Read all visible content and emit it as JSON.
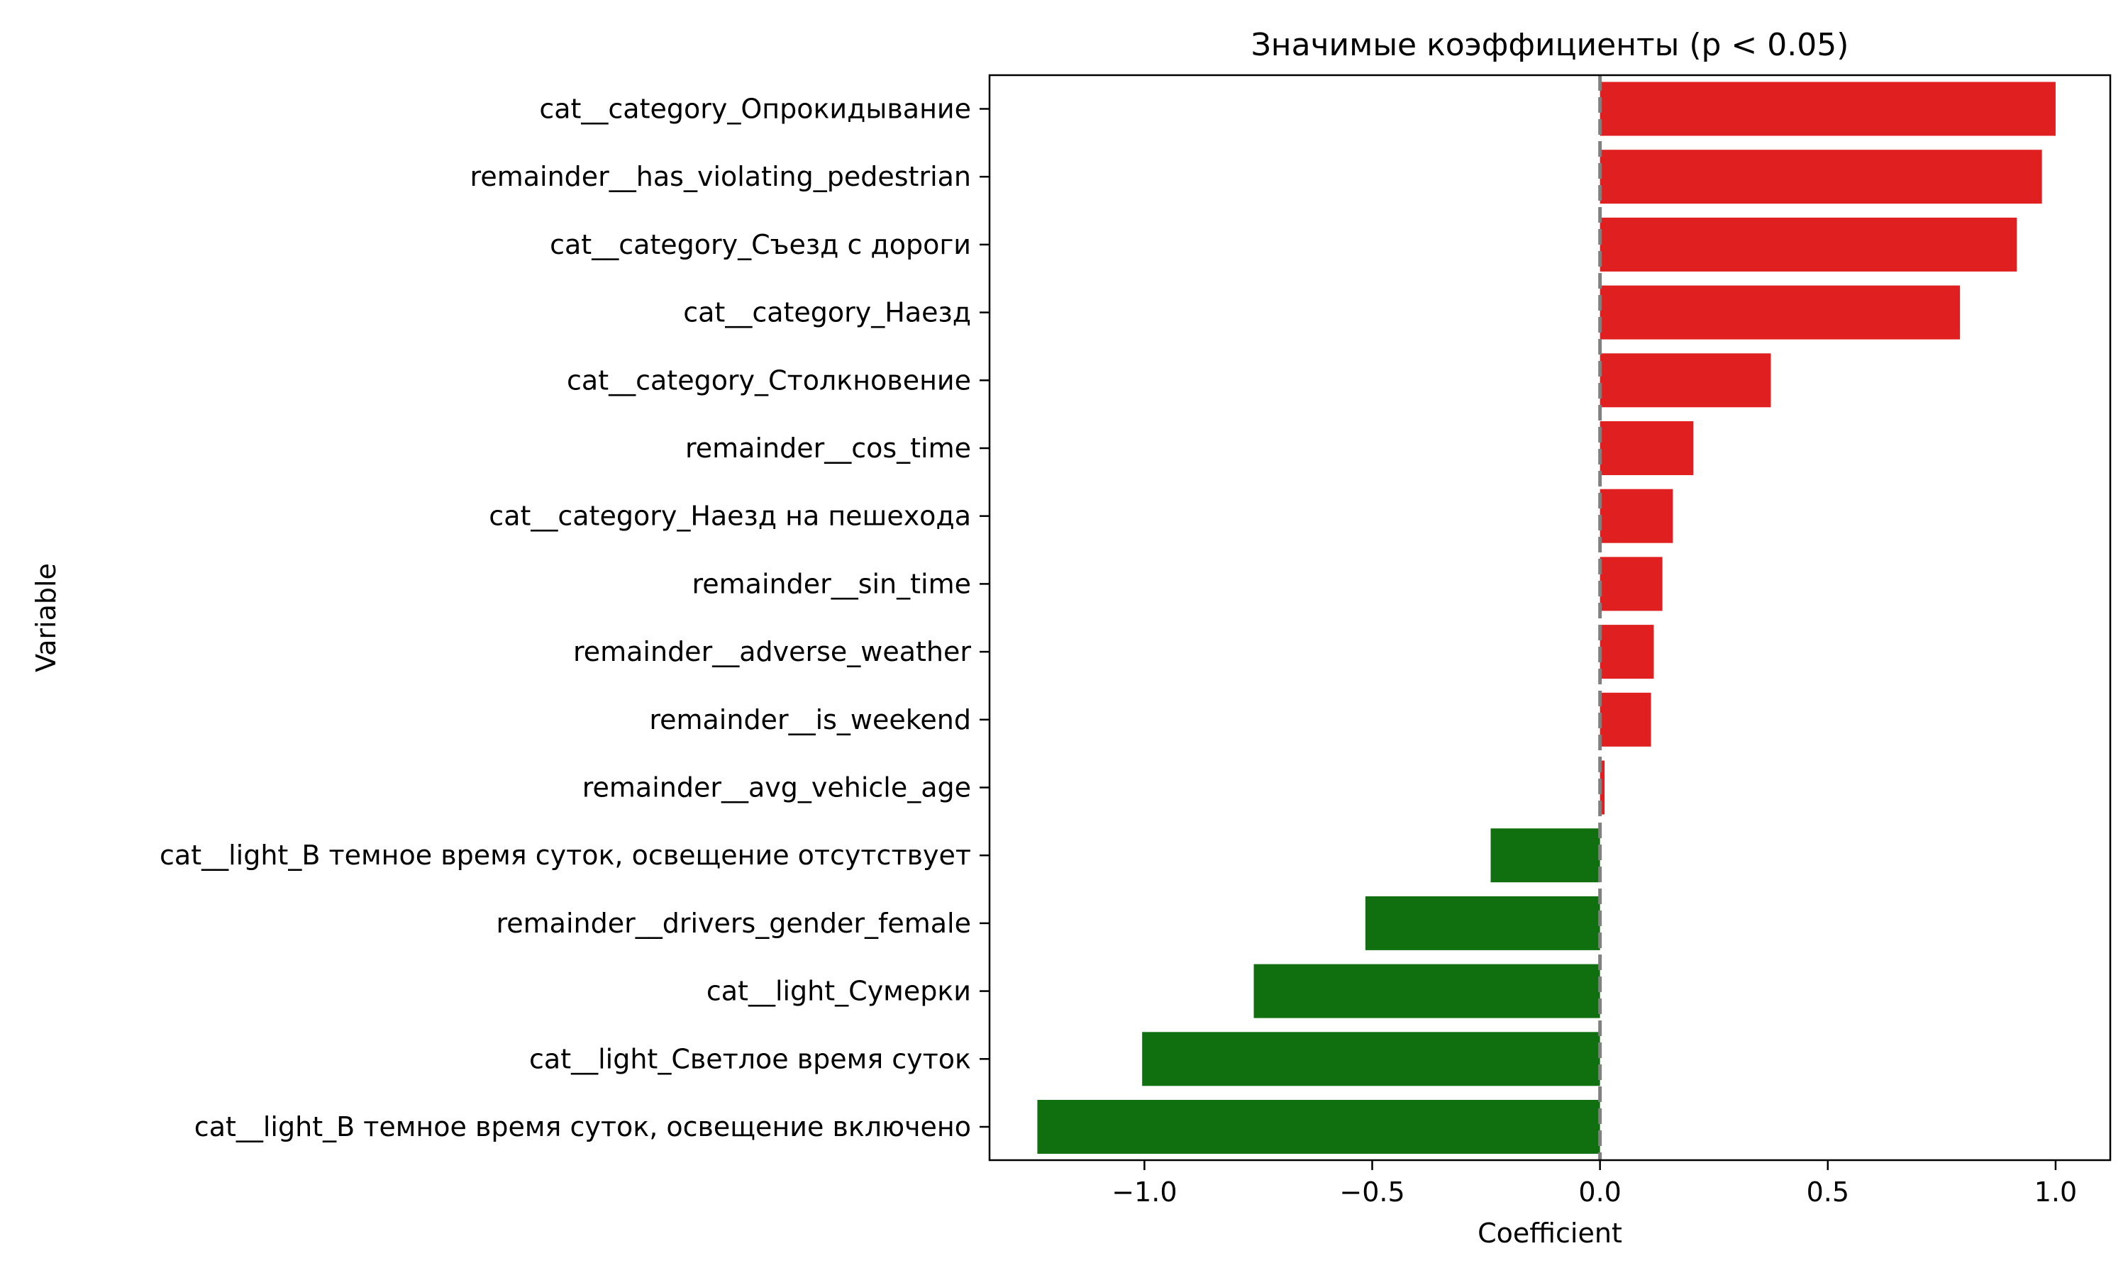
{
  "chart_data": {
    "type": "bar",
    "orientation": "horizontal",
    "title": "Значимые коэффициенты (p < 0.05)",
    "xlabel": "Coefficient",
    "ylabel": "Variable",
    "xlim": [
      -1.34,
      1.12
    ],
    "xticks": [
      -1.0,
      -0.5,
      0.0,
      0.5,
      1.0
    ],
    "xtick_labels": [
      "−1.0",
      "−0.5",
      "0.0",
      "0.5",
      "1.0"
    ],
    "grid": false,
    "legend": "none",
    "reference_line": {
      "x": 0.0,
      "style": "dashed",
      "color": "#808080"
    },
    "colors": {
      "positive": "#e02020",
      "negative": "#107010"
    },
    "categories": [
      "cat__category_Опрокидывание",
      "remainder__has_violating_pedestrian",
      "cat__category_Съезд с дороги",
      "cat__category_Наезд",
      "cat__category_Столкновение",
      "remainder__cos_time",
      "cat__category_Наезд на пешехода",
      "remainder__sin_time",
      "remainder__adverse_weather",
      "remainder__is_weekend",
      "remainder__avg_vehicle_age",
      "cat__light_В темное время суток, освещение отсутствует",
      "remainder__drivers_gender_female",
      "cat__light_Сумерки",
      "cat__light_Светлое время суток",
      "cat__light_В темное время суток, освещение включено"
    ],
    "values": [
      1.0,
      0.97,
      0.915,
      0.79,
      0.375,
      0.205,
      0.16,
      0.137,
      0.118,
      0.112,
      0.01,
      -0.24,
      -0.515,
      -0.76,
      -1.005,
      -1.235
    ]
  }
}
